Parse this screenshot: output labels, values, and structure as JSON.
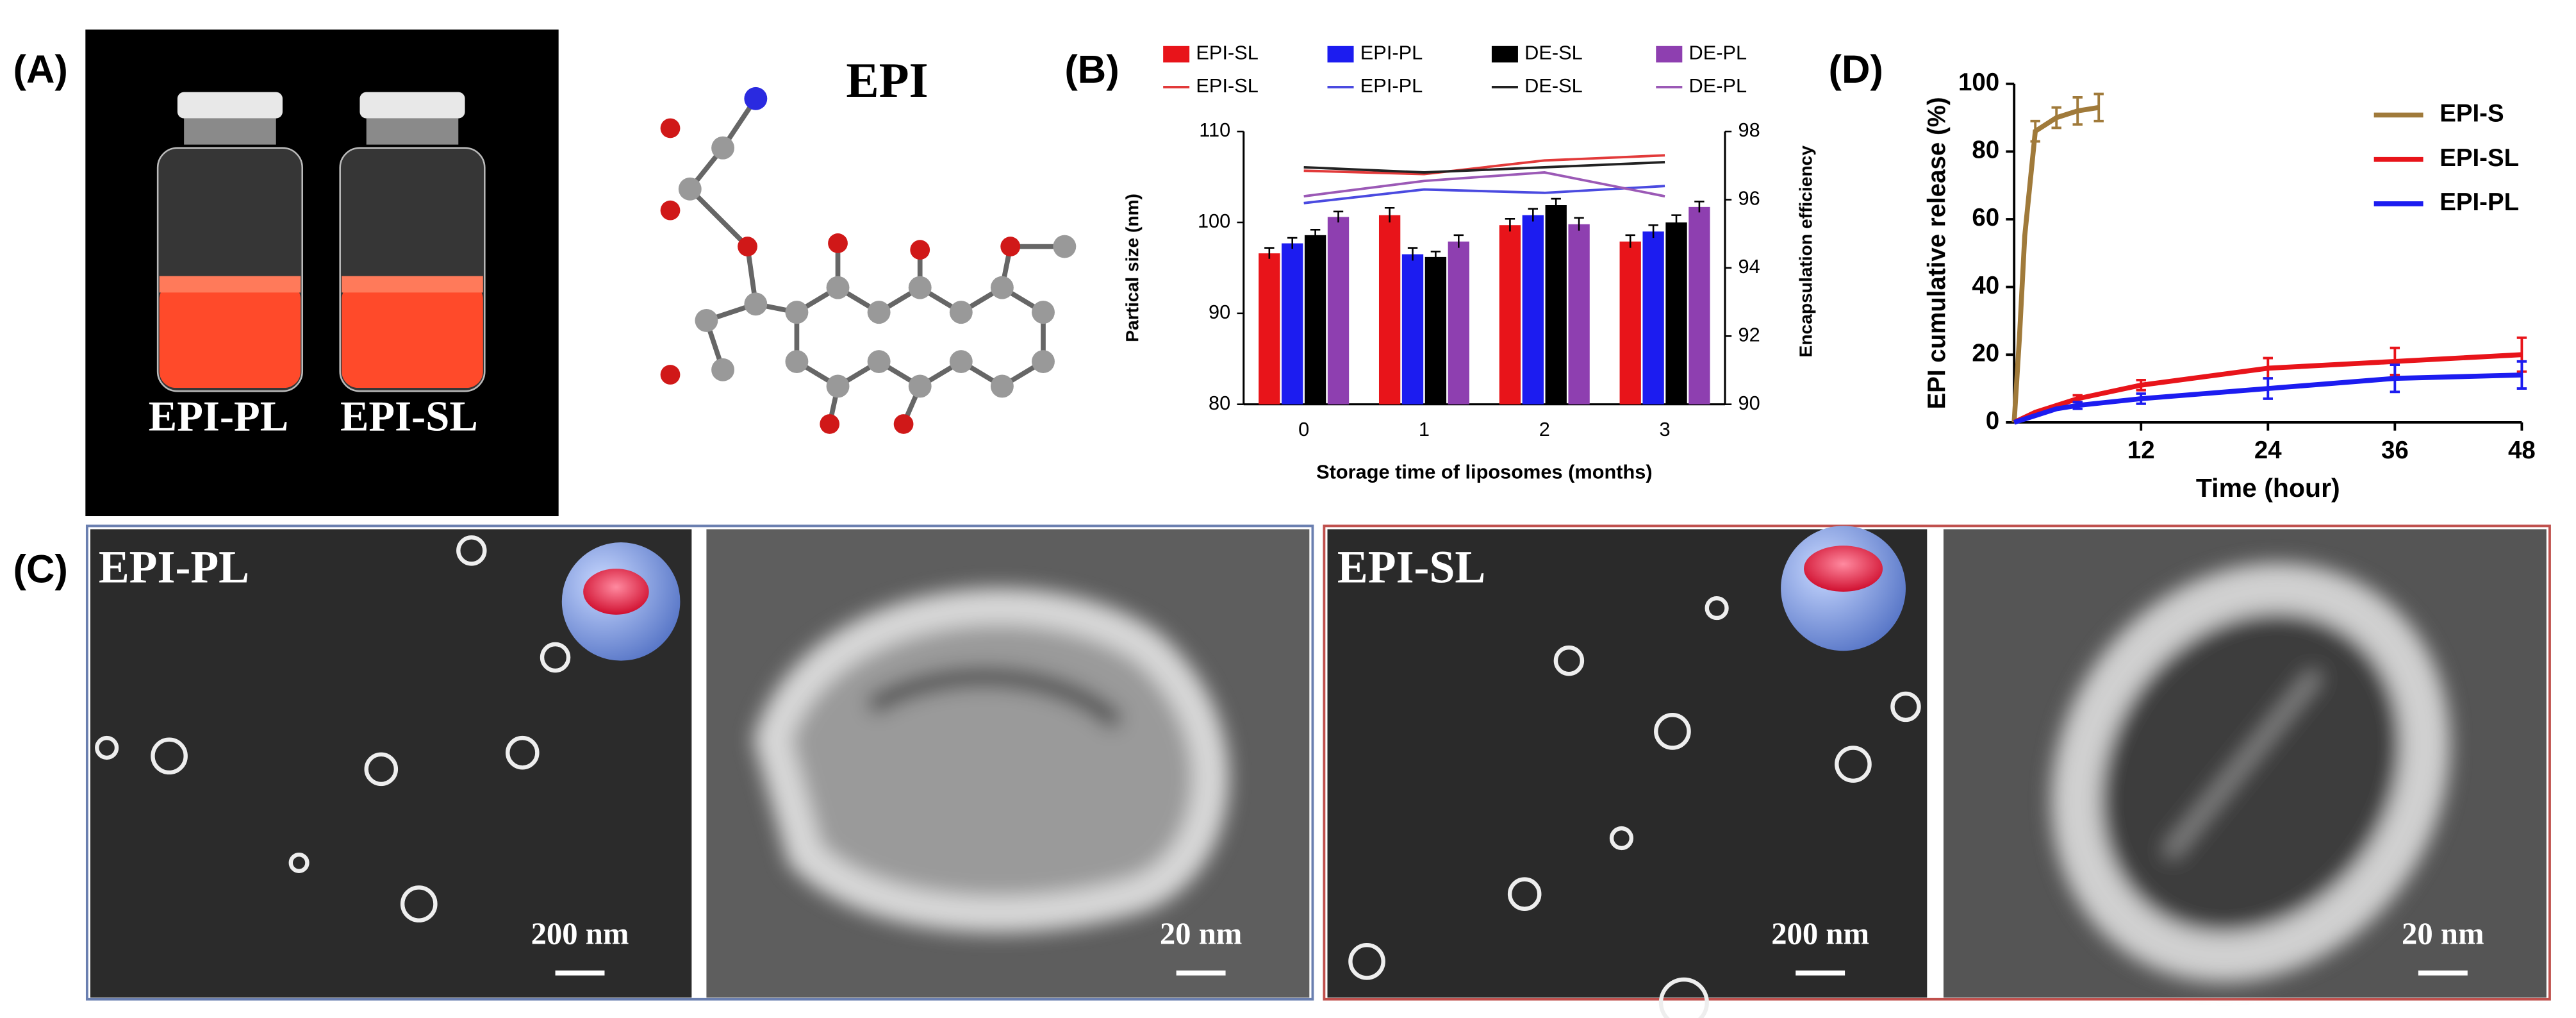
{
  "panels": {
    "labels": [
      "(A)",
      "(B)",
      "(C)",
      "(D)"
    ],
    "vials": [
      "EPI-PL",
      "EPI-SL"
    ],
    "molecule": {
      "title": "EPI"
    },
    "tem": [
      {
        "label": "EPI-PL",
        "scale": "200 nm"
      },
      {
        "scale": "20 nm"
      },
      {
        "label": "EPI-SL",
        "scale": "200 nm"
      },
      {
        "scale": "20 nm"
      }
    ]
  },
  "chart_data": [
    {
      "type": "bar",
      "categories": [
        "0",
        "1",
        "2",
        "3"
      ],
      "x_label": "Storage time of liposomes (months)",
      "y_label": "Partical size (nm)",
      "y2_label": "Encapsulation efficiency",
      "ylim": [
        80,
        110
      ],
      "yticks": [
        80,
        90,
        100,
        110
      ],
      "y2lim": [
        90,
        98
      ],
      "y2ticks": [
        90,
        92,
        94,
        96,
        98
      ],
      "series": [
        {
          "name": "EPI-SL",
          "color": "#e8141a",
          "values": [
            96.6,
            100.8,
            99.7,
            97.9
          ],
          "errors": [
            0.6,
            0.8,
            0.7,
            0.7
          ]
        },
        {
          "name": "EPI-PL",
          "color": "#1c1cf0",
          "values": [
            97.7,
            96.5,
            100.8,
            99.0
          ],
          "errors": [
            0.6,
            0.7,
            0.7,
            0.7
          ]
        },
        {
          "name": "DE-SL",
          "color": "#000000",
          "values": [
            98.6,
            96.2,
            101.9,
            100.0
          ],
          "errors": [
            0.6,
            0.6,
            0.7,
            0.8
          ]
        },
        {
          "name": "DE-PL",
          "color": "#8e3fb0",
          "values": [
            100.6,
            97.9,
            99.8,
            101.7
          ],
          "errors": [
            0.6,
            0.7,
            0.7,
            0.6
          ]
        },
        {
          "name": "EPI-SL",
          "type": "line",
          "axis": "y2",
          "color": "#e23a3a",
          "values": [
            96.85,
            96.75,
            97.15,
            97.3
          ]
        },
        {
          "name": "EPI-PL",
          "type": "line",
          "axis": "y2",
          "color": "#4a4ae0",
          "values": [
            95.9,
            96.3,
            96.2,
            96.4
          ]
        },
        {
          "name": "DE-SL",
          "type": "line",
          "axis": "y2",
          "color": "#222222",
          "values": [
            96.95,
            96.8,
            96.95,
            97.1
          ]
        },
        {
          "name": "DE-PL",
          "type": "line",
          "axis": "y2",
          "color": "#9b59b6",
          "values": [
            96.1,
            96.55,
            96.8,
            96.1
          ]
        }
      ]
    },
    {
      "type": "line",
      "x_label": "Time (hour)",
      "y_label": "EPI cumulative release (%)",
      "xlim": [
        0,
        48
      ],
      "xticks": [
        12,
        24,
        36,
        48
      ],
      "ylim": [
        0,
        100
      ],
      "yticks": [
        0,
        20,
        40,
        60,
        80,
        100
      ],
      "legend": "upper right",
      "series": [
        {
          "name": "EPI-S",
          "color": "#a07a3a",
          "x": [
            0,
            0.5,
            1,
            2,
            4,
            6,
            8
          ],
          "values": [
            0,
            25,
            55,
            86,
            90,
            92,
            93
          ],
          "errors": [
            0,
            0,
            0,
            3,
            3,
            4,
            4
          ]
        },
        {
          "name": "EPI-SL",
          "color": "#e8141a",
          "x": [
            0,
            2,
            4,
            6,
            12,
            24,
            36,
            48
          ],
          "values": [
            0,
            3,
            5,
            7,
            11,
            16,
            18,
            20
          ],
          "errors": [
            0,
            0,
            0,
            1,
            1.5,
            3,
            4,
            5
          ]
        },
        {
          "name": "EPI-PL",
          "color": "#1c1cf0",
          "x": [
            0,
            2,
            4,
            6,
            12,
            24,
            36,
            48
          ],
          "values": [
            0,
            2,
            4,
            5,
            7,
            10,
            13,
            14
          ],
          "errors": [
            0,
            0,
            0,
            1,
            1.5,
            3,
            4,
            4
          ]
        }
      ]
    }
  ]
}
